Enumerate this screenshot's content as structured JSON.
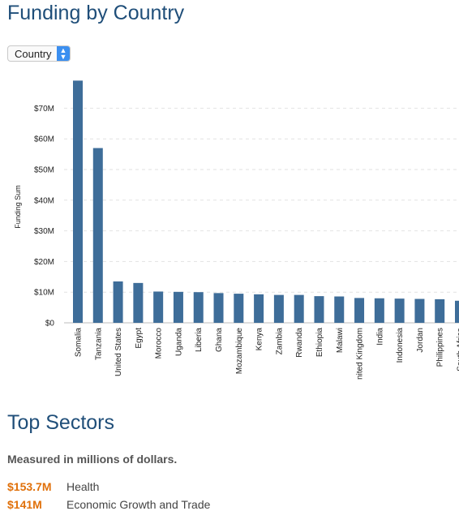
{
  "page_title": "Funding by Country",
  "select": {
    "value": "Country"
  },
  "chart_data": {
    "type": "bar",
    "ylabel": "Funding Sum",
    "xlabel": "",
    "ylim": [
      0,
      80
    ],
    "yticks": [
      0,
      10,
      20,
      30,
      40,
      50,
      60,
      70
    ],
    "ytick_labels": [
      "$0",
      "$10M",
      "$20M",
      "$30M",
      "$40M",
      "$50M",
      "$60M",
      "$70M"
    ],
    "grid": "horizontal dashed",
    "bar_color": "#3e6d99",
    "categories": [
      "Somalia",
      "Tanzania",
      "United States",
      "Egypt",
      "Morocco",
      "Uganda",
      "Liberia",
      "Ghana",
      "Mozambique",
      "Kenya",
      "Zambia",
      "Rwanda",
      "Ethiopia",
      "Malawi",
      "nited Kingdom",
      "India",
      "Indonesia",
      "Jordan",
      "Philippines",
      "South Africa"
    ],
    "values": [
      79,
      57,
      13.5,
      13,
      10.2,
      10.1,
      10,
      9.7,
      9.5,
      9.3,
      9.1,
      9.1,
      8.7,
      8.6,
      8.1,
      8.0,
      7.9,
      7.8,
      7.7,
      7.2
    ]
  },
  "sectors": {
    "title": "Top Sectors",
    "note": "Measured in millions of dollars.",
    "items": [
      {
        "amount": "$153.7M",
        "name": "Health"
      },
      {
        "amount": "$141M",
        "name": "Economic Growth and Trade"
      }
    ]
  },
  "colors": {
    "heading": "#1f4e79",
    "accent": "#e0700a",
    "bar": "#3e6d99"
  }
}
